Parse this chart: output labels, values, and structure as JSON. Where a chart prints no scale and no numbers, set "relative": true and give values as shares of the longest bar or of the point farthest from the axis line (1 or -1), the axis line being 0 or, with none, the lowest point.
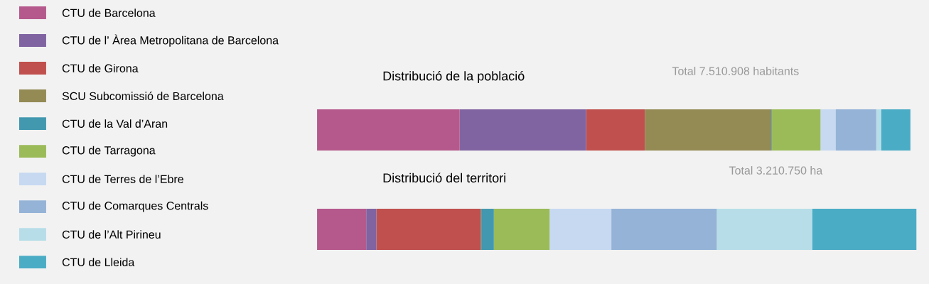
{
  "chart_data": {
    "type": "bar",
    "orientation": "horizontal",
    "stacked": true,
    "relative": true,
    "legend": "left",
    "categories": [
      "Distribució  de la població",
      "Distribució del territori"
    ],
    "series": [
      {
        "name": "CTU de Barcelona",
        "color": "#b5598c",
        "values": [
          0.238,
          0.082
        ]
      },
      {
        "name": "CTU de l’ Àrea Metropolitana de Barcelona",
        "color": "#8064a2",
        "values": [
          0.211,
          0.017
        ]
      },
      {
        "name": "CTU de Girona",
        "color": "#c0504d",
        "values": [
          0.098,
          0.174
        ]
      },
      {
        "name": "SCU  Subcomissió de Barcelona",
        "color": "#948a54",
        "values": [
          0.211,
          0.001
        ]
      },
      {
        "name": "CTU de la Val d’Aran",
        "color": "#4198af",
        "values": [
          0.001,
          0.021
        ]
      },
      {
        "name": "CTU de Tarragona",
        "color": "#9bbb59",
        "values": [
          0.081,
          0.093
        ]
      },
      {
        "name": "CTU de Terres de l’Ebre",
        "color": "#c6d9f1",
        "values": [
          0.025,
          0.103
        ]
      },
      {
        "name": "CTU de Comarques Centrals",
        "color": "#95b3d7",
        "values": [
          0.068,
          0.176
        ]
      },
      {
        "name": "CTU de l’Alt Pirineu",
        "color": "#b7dee8",
        "values": [
          0.008,
          0.159
        ]
      },
      {
        "name": "CTU de Lleida",
        "color": "#4bacc6",
        "values": [
          0.049,
          0.174
        ]
      }
    ],
    "annotations": [
      "Total 7.510.908 habitants",
      "Total 3.210.750 ha"
    ]
  }
}
